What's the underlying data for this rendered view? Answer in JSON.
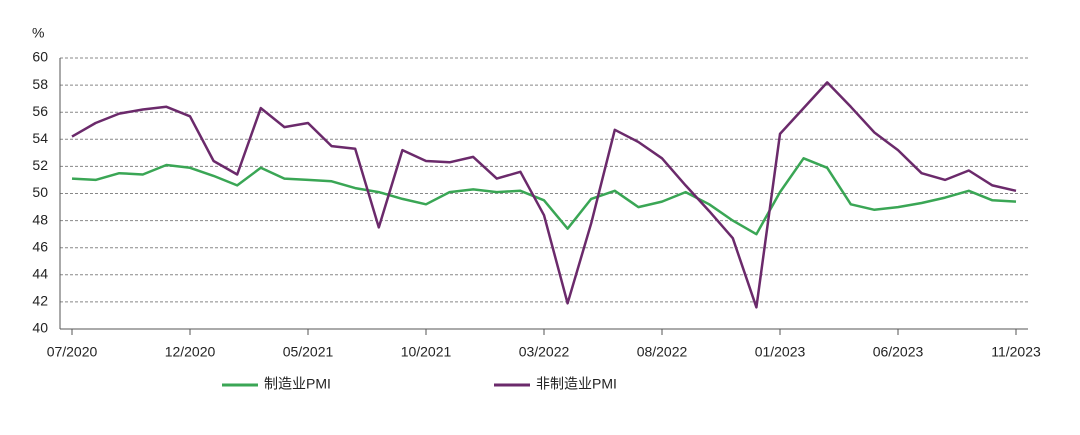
{
  "chart_data": {
    "type": "line",
    "y_label": "%",
    "categories": [
      "07/2020",
      null,
      null,
      null,
      null,
      "12/2020",
      null,
      null,
      null,
      null,
      "05/2021",
      null,
      null,
      null,
      null,
      "10/2021",
      null,
      null,
      null,
      null,
      "03/2022",
      null,
      null,
      null,
      null,
      "08/2022",
      null,
      null,
      null,
      null,
      "01/2023",
      null,
      null,
      null,
      null,
      "06/2023",
      null,
      null,
      null,
      null,
      "11/2023"
    ],
    "series": [
      {
        "name": "制造业PMI",
        "color": "#3aa655",
        "values": [
          51.1,
          51.0,
          51.5,
          51.4,
          52.1,
          51.9,
          51.3,
          50.6,
          51.9,
          51.1,
          51.0,
          50.9,
          50.4,
          50.1,
          49.6,
          49.2,
          50.1,
          50.3,
          50.1,
          50.2,
          49.5,
          47.4,
          49.6,
          50.2,
          49.0,
          49.4,
          50.1,
          49.2,
          48.0,
          47.0,
          50.1,
          52.6,
          51.9,
          49.2,
          48.8,
          49.0,
          49.3,
          49.7,
          50.2,
          49.5,
          49.4
        ]
      },
      {
        "name": "非制造业PMI",
        "color": "#6b2a6b",
        "values": [
          54.2,
          55.2,
          55.9,
          56.2,
          56.4,
          55.7,
          52.4,
          51.4,
          56.3,
          54.9,
          55.2,
          53.5,
          53.3,
          47.5,
          53.2,
          52.4,
          52.3,
          52.7,
          51.1,
          51.6,
          48.4,
          41.9,
          47.8,
          54.7,
          53.8,
          52.6,
          50.6,
          48.7,
          46.7,
          41.6,
          54.4,
          56.3,
          58.2,
          56.4,
          54.5,
          53.2,
          51.5,
          51.0,
          51.7,
          50.6,
          50.2
        ]
      }
    ],
    "ylim": [
      40,
      60
    ],
    "yticks": [
      40,
      42,
      44,
      46,
      48,
      50,
      52,
      54,
      56,
      58,
      60
    ],
    "grid": true
  }
}
